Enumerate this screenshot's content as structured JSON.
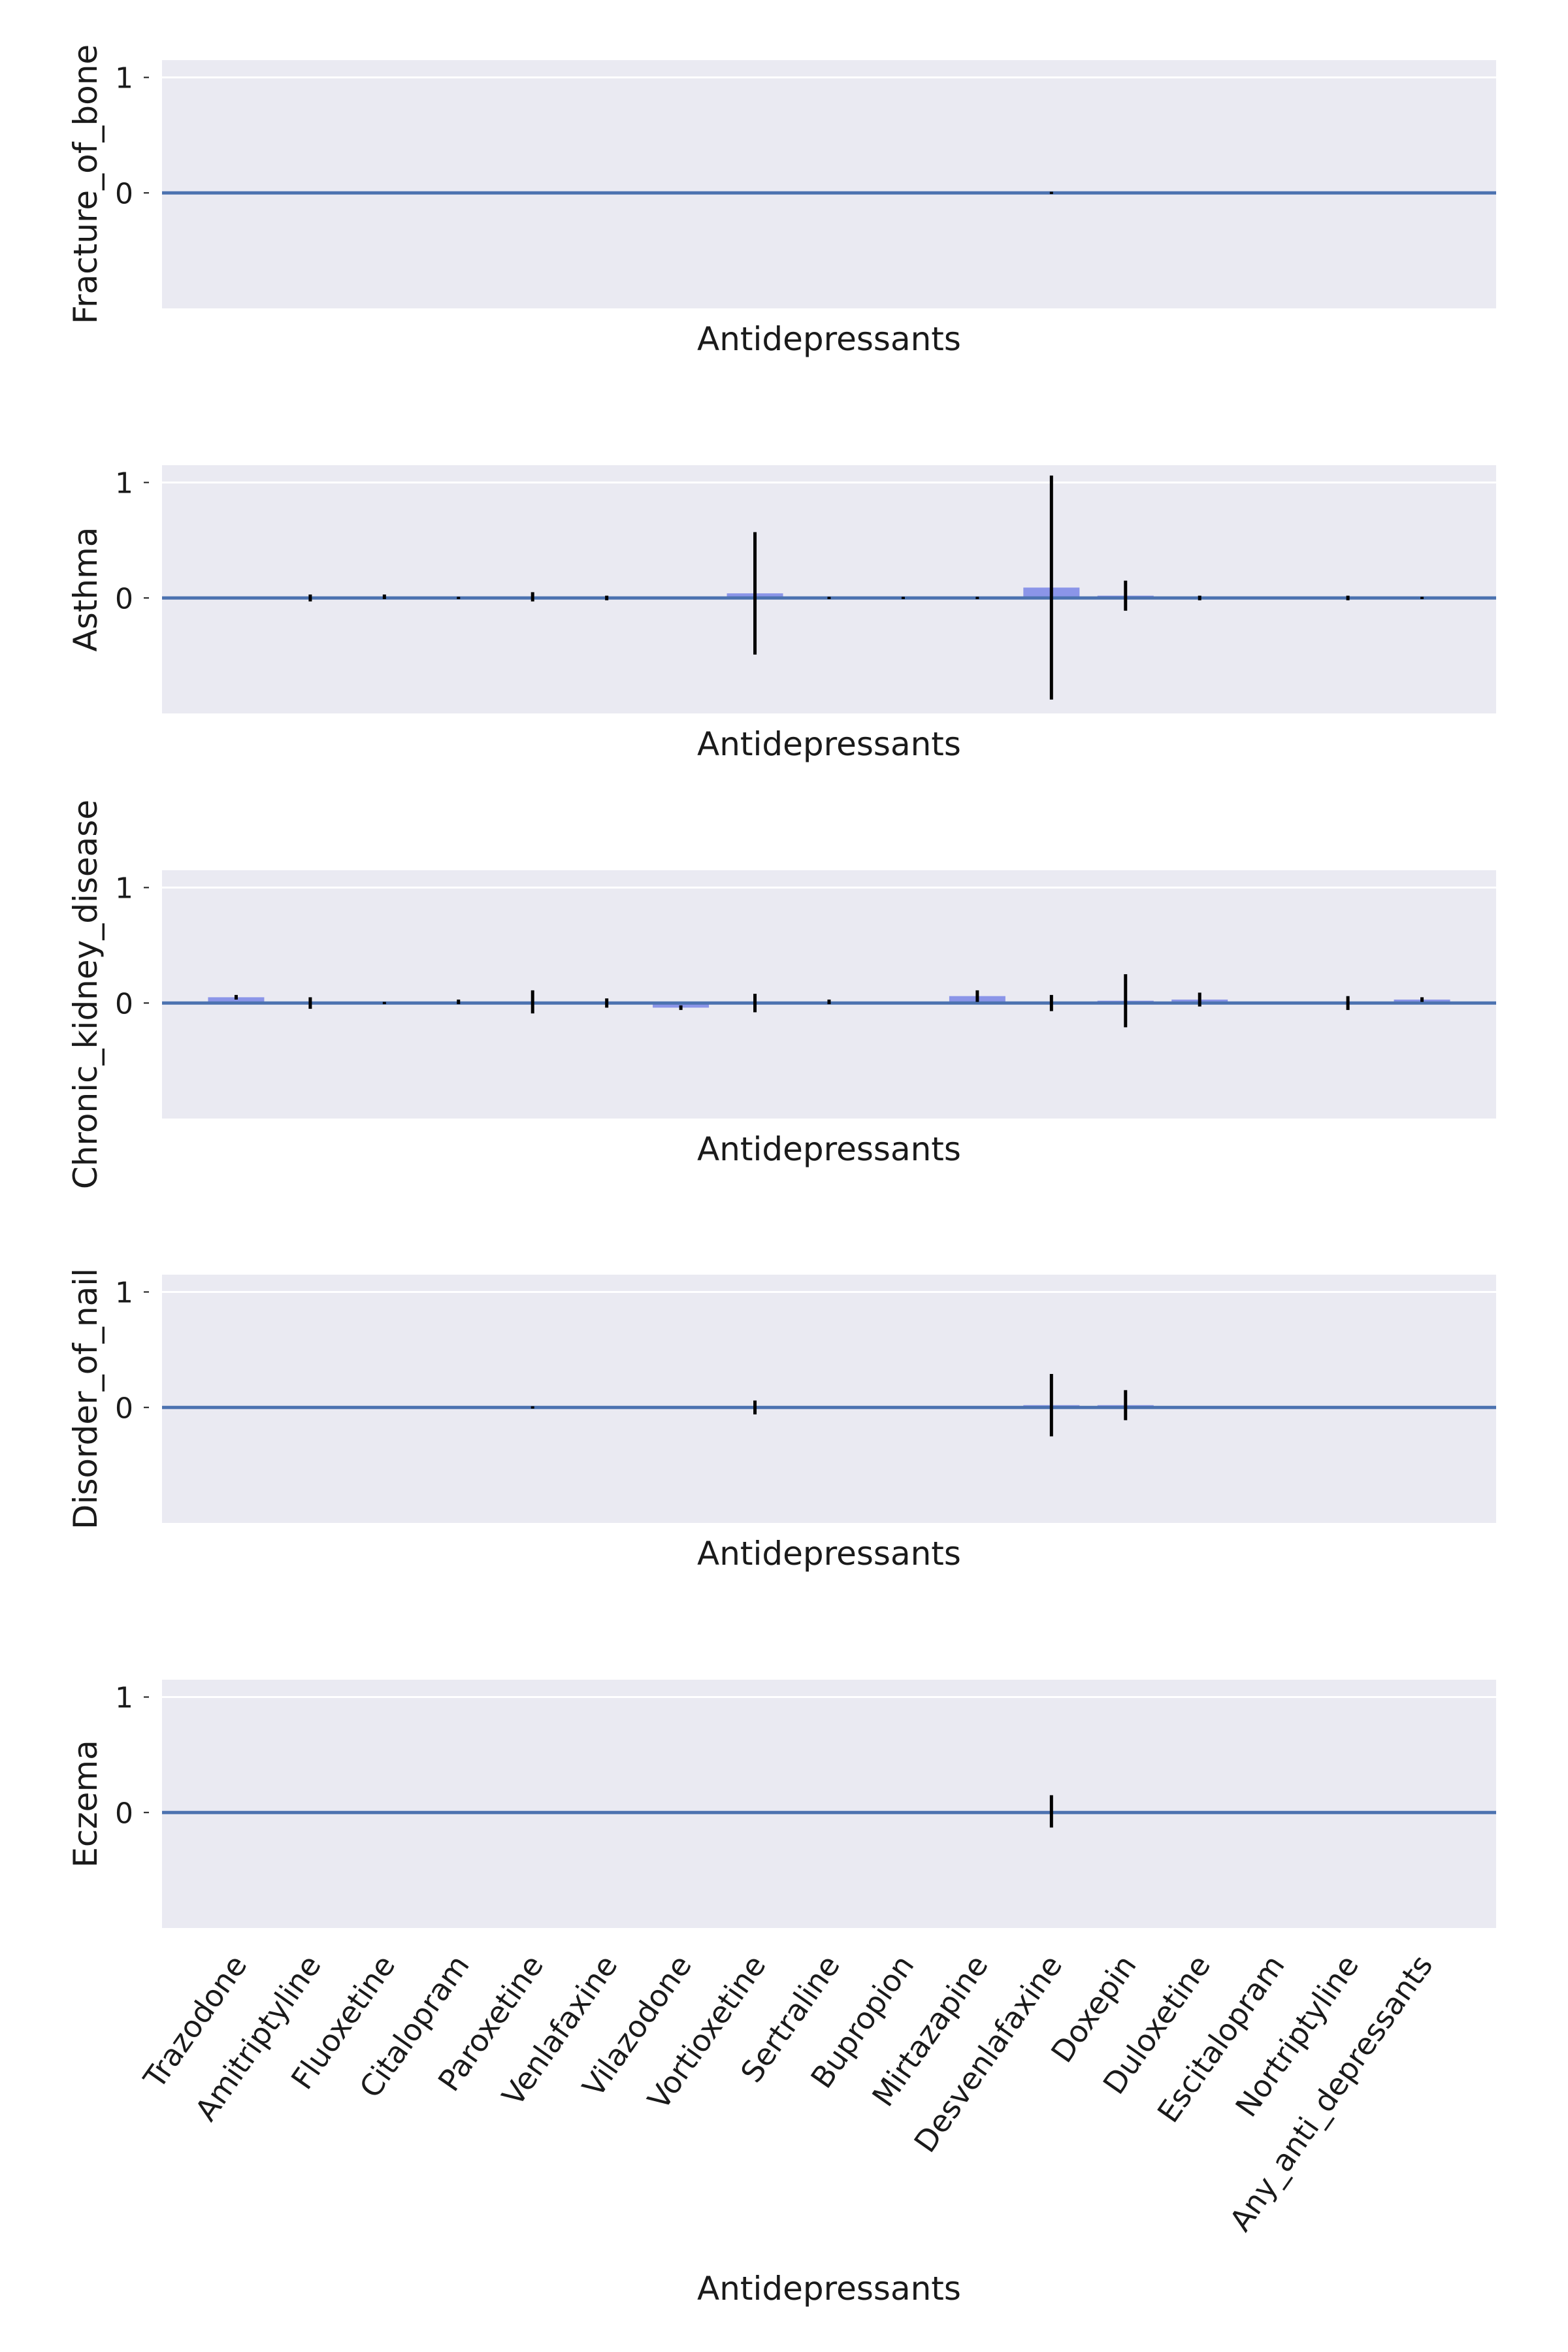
{
  "chart_data": [
    {
      "type": "bar",
      "ylabel": "Fracture_of_bone",
      "xlabel": "Antidepressants",
      "ylim": [
        -1,
        1.15
      ],
      "yticks": [
        0,
        1
      ],
      "grid": true,
      "categories": [
        "Trazodone",
        "Amitriptyline",
        "Fluoxetine",
        "Citalopram",
        "Paroxetine",
        "Venlafaxine",
        "Vilazodone",
        "Vortioxetine",
        "Sertraline",
        "Bupropion",
        "Mirtazapine",
        "Desvenlafaxine",
        "Doxepin",
        "Duloxetine",
        "Escitalopram",
        "Nortriptyline",
        "Any_anti_depressants"
      ],
      "values": [
        0,
        0,
        0,
        0,
        0,
        0,
        0,
        0,
        0,
        0,
        0,
        0,
        0,
        0,
        0,
        0,
        0
      ],
      "error": [
        0,
        0,
        0,
        0,
        0,
        0,
        0,
        0,
        0,
        0,
        0,
        0.01,
        0,
        0,
        0,
        0,
        0
      ]
    },
    {
      "type": "bar",
      "ylabel": "Asthma",
      "xlabel": "Antidepressants",
      "ylim": [
        -1,
        1.15
      ],
      "yticks": [
        0,
        1
      ],
      "grid": true,
      "categories": [
        "Trazodone",
        "Amitriptyline",
        "Fluoxetine",
        "Citalopram",
        "Paroxetine",
        "Venlafaxine",
        "Vilazodone",
        "Vortioxetine",
        "Sertraline",
        "Bupropion",
        "Mirtazapine",
        "Desvenlafaxine",
        "Doxepin",
        "Duloxetine",
        "Escitalopram",
        "Nortriptyline",
        "Any_anti_depressants"
      ],
      "values": [
        0,
        0,
        0.01,
        0,
        0.01,
        0,
        0,
        0.04,
        0,
        0,
        0,
        0.09,
        0.02,
        0,
        0,
        0,
        0
      ],
      "error": [
        0,
        0.03,
        0.02,
        0.01,
        0.04,
        0.02,
        0,
        0.53,
        0.01,
        0.01,
        0.01,
        0.97,
        0.13,
        0.02,
        0,
        0.02,
        0.01
      ]
    },
    {
      "type": "bar",
      "ylabel": "Chronic_kidney_disease",
      "xlabel": "Antidepressants",
      "ylim": [
        -1,
        1.15
      ],
      "yticks": [
        0,
        1
      ],
      "grid": true,
      "categories": [
        "Trazodone",
        "Amitriptyline",
        "Fluoxetine",
        "Citalopram",
        "Paroxetine",
        "Venlafaxine",
        "Vilazodone",
        "Vortioxetine",
        "Sertraline",
        "Bupropion",
        "Mirtazapine",
        "Desvenlafaxine",
        "Doxepin",
        "Duloxetine",
        "Escitalopram",
        "Nortriptyline",
        "Any_anti_depressants"
      ],
      "values": [
        0.05,
        0,
        0,
        0.01,
        0.01,
        0,
        -0.04,
        0,
        0.01,
        0,
        0.06,
        0,
        0.02,
        0.03,
        0,
        0,
        0.03
      ],
      "error": [
        0.02,
        0.05,
        0.01,
        0.02,
        0.1,
        0.04,
        0.02,
        0.08,
        0.02,
        0,
        0.05,
        0.07,
        0.23,
        0.06,
        0,
        0.06,
        0.02
      ]
    },
    {
      "type": "bar",
      "ylabel": "Disorder_of_nail",
      "xlabel": "Antidepressants",
      "ylim": [
        -1,
        1.15
      ],
      "yticks": [
        0,
        1
      ],
      "grid": true,
      "categories": [
        "Trazodone",
        "Amitriptyline",
        "Fluoxetine",
        "Citalopram",
        "Paroxetine",
        "Venlafaxine",
        "Vilazodone",
        "Vortioxetine",
        "Sertraline",
        "Bupropion",
        "Mirtazapine",
        "Desvenlafaxine",
        "Doxepin",
        "Duloxetine",
        "Escitalopram",
        "Nortriptyline",
        "Any_anti_depressants"
      ],
      "values": [
        0,
        0,
        0,
        0,
        0,
        0,
        0,
        0,
        0,
        0,
        0,
        0.02,
        0.02,
        0,
        0,
        0,
        0
      ],
      "error": [
        0,
        0,
        0,
        0,
        0.01,
        0,
        0,
        0.06,
        0,
        0,
        0,
        0.27,
        0.13,
        0,
        0,
        0,
        0
      ]
    },
    {
      "type": "bar",
      "ylabel": "Eczema",
      "xlabel": "Antidepressants",
      "ylim": [
        -1,
        1.15
      ],
      "yticks": [
        0,
        1
      ],
      "grid": true,
      "categories": [
        "Trazodone",
        "Amitriptyline",
        "Fluoxetine",
        "Citalopram",
        "Paroxetine",
        "Venlafaxine",
        "Vilazodone",
        "Vortioxetine",
        "Sertraline",
        "Bupropion",
        "Mirtazapine",
        "Desvenlafaxine",
        "Doxepin",
        "Duloxetine",
        "Escitalopram",
        "Nortriptyline",
        "Any_anti_depressants"
      ],
      "values": [
        0,
        0,
        0,
        0,
        0,
        0,
        0,
        0,
        0,
        0,
        0,
        0.01,
        0,
        0,
        0,
        0,
        0
      ],
      "error": [
        0,
        0,
        0,
        0,
        0,
        0,
        0,
        0,
        0,
        0,
        0,
        0.14,
        0,
        0,
        0,
        0,
        0
      ]
    }
  ],
  "colors": {
    "panel_bg": "#eaeaf2",
    "gridline": "#ffffff",
    "baseline": "#4c72b0",
    "bar": "#8b95e8",
    "errorbar": "#000000"
  }
}
